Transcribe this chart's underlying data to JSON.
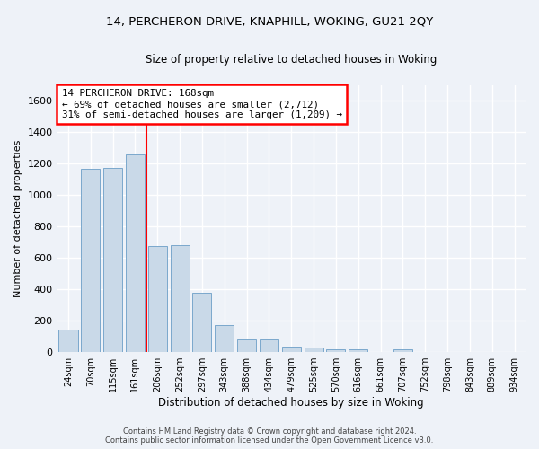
{
  "title1": "14, PERCHERON DRIVE, KNAPHILL, WOKING, GU21 2QY",
  "title2": "Size of property relative to detached houses in Woking",
  "xlabel": "Distribution of detached houses by size in Woking",
  "ylabel": "Number of detached properties",
  "categories": [
    "24sqm",
    "70sqm",
    "115sqm",
    "161sqm",
    "206sqm",
    "252sqm",
    "297sqm",
    "343sqm",
    "388sqm",
    "434sqm",
    "479sqm",
    "525sqm",
    "570sqm",
    "616sqm",
    "661sqm",
    "707sqm",
    "752sqm",
    "798sqm",
    "843sqm",
    "889sqm",
    "934sqm"
  ],
  "values": [
    145,
    1170,
    1175,
    1260,
    675,
    680,
    380,
    170,
    80,
    80,
    35,
    30,
    20,
    20,
    0,
    15,
    0,
    0,
    0,
    0,
    0
  ],
  "bar_color": "#c9d9e8",
  "bar_edge_color": "#7aa8cc",
  "vline_x": 3.5,
  "vline_color": "red",
  "annotation_text": "14 PERCHERON DRIVE: 168sqm\n← 69% of detached houses are smaller (2,712)\n31% of semi-detached houses are larger (1,209) →",
  "annotation_box_color": "white",
  "annotation_box_edge_color": "red",
  "ylim": [
    0,
    1700
  ],
  "yticks": [
    0,
    200,
    400,
    600,
    800,
    1000,
    1200,
    1400,
    1600
  ],
  "footnote": "Contains HM Land Registry data © Crown copyright and database right 2024.\nContains public sector information licensed under the Open Government Licence v3.0.",
  "background_color": "#eef2f8",
  "grid_color": "white"
}
